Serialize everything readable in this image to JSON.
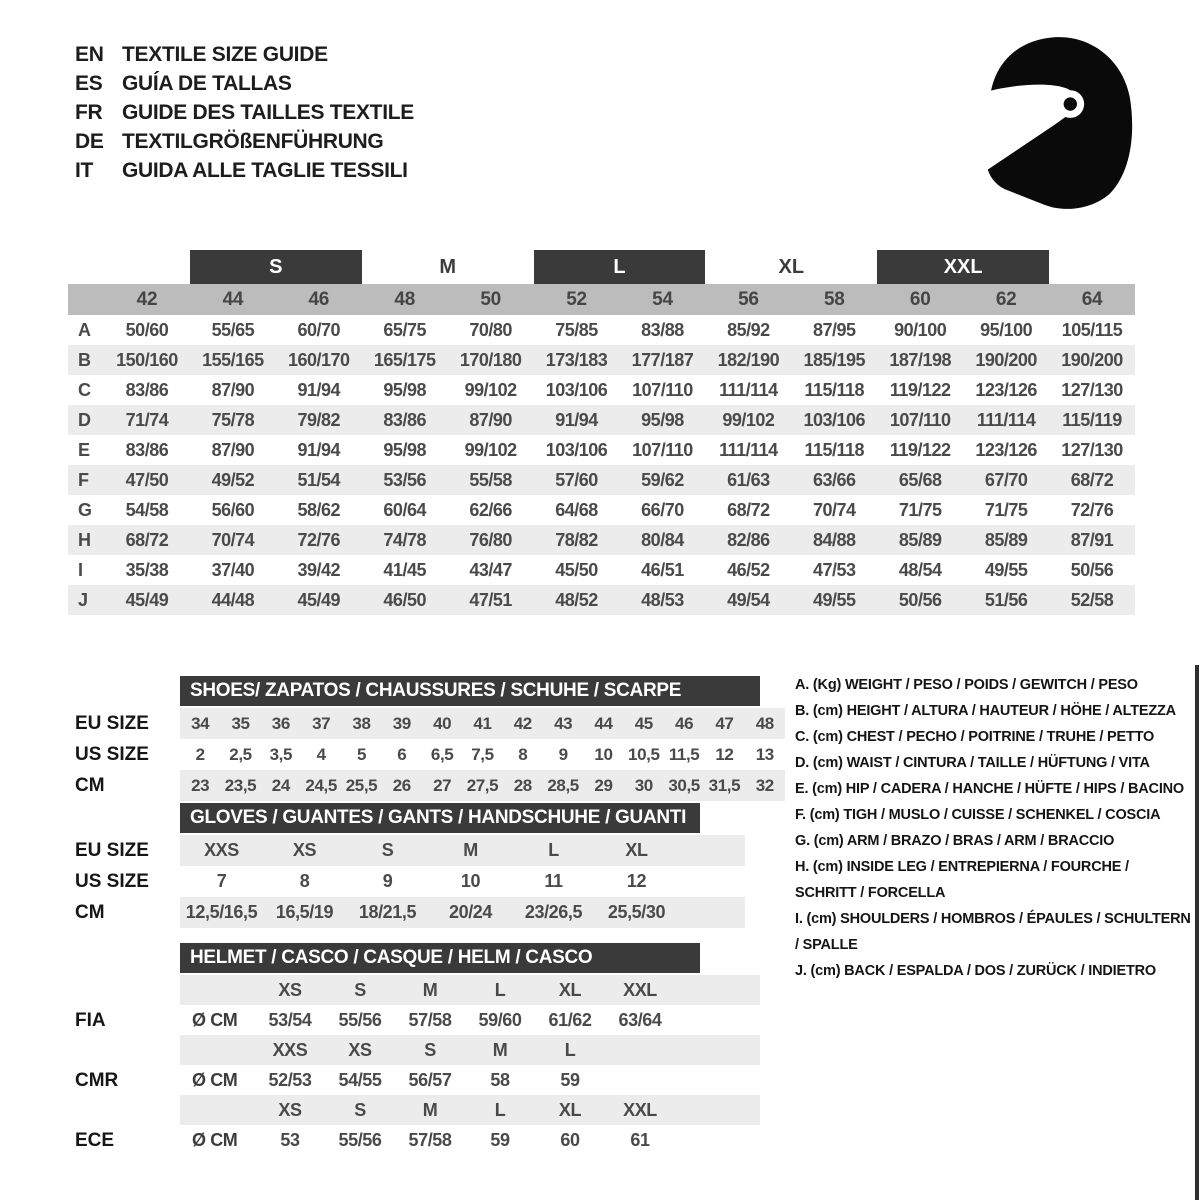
{
  "colors": {
    "header_bar": "#3a3a3a",
    "stripe": "#ececec",
    "band": "#bcbcbc",
    "table_text": "#4a4a4a",
    "helmet_icon": "#0a0a0a"
  },
  "header": {
    "languages": [
      {
        "code": "EN",
        "title": "TEXTILE SIZE GUIDE"
      },
      {
        "code": "ES",
        "title": "GUÍA DE TALLAS"
      },
      {
        "code": "FR",
        "title": "GUIDE DES TAILLES TEXTILE"
      },
      {
        "code": "DE",
        "title": "TEXTILGRÖßENFÜHRUNG"
      },
      {
        "code": "IT",
        "title": "GUIDA ALLE TAGLIE TESSILI"
      }
    ]
  },
  "icon": {
    "name": "racing-helmet"
  },
  "main_table": {
    "groups": [
      {
        "label": "S",
        "boxed": true
      },
      {
        "label": "M",
        "boxed": false
      },
      {
        "label": "L",
        "boxed": true
      },
      {
        "label": "XL",
        "boxed": false
      },
      {
        "label": "XXL",
        "boxed": true
      }
    ],
    "numeric_sizes": [
      "42",
      "44",
      "46",
      "48",
      "50",
      "52",
      "54",
      "56",
      "58",
      "60",
      "62",
      "64"
    ],
    "rows": [
      {
        "label": "A",
        "values": [
          "50/60",
          "55/65",
          "60/70",
          "65/75",
          "70/80",
          "75/85",
          "83/88",
          "85/92",
          "87/95",
          "90/100",
          "95/100",
          "105/115"
        ]
      },
      {
        "label": "B",
        "values": [
          "150/160",
          "155/165",
          "160/170",
          "165/175",
          "170/180",
          "173/183",
          "177/187",
          "182/190",
          "185/195",
          "187/198",
          "190/200",
          "190/200"
        ]
      },
      {
        "label": "C",
        "values": [
          "83/86",
          "87/90",
          "91/94",
          "95/98",
          "99/102",
          "103/106",
          "107/110",
          "111/114",
          "115/118",
          "119/122",
          "123/126",
          "127/130"
        ]
      },
      {
        "label": "D",
        "values": [
          "71/74",
          "75/78",
          "79/82",
          "83/86",
          "87/90",
          "91/94",
          "95/98",
          "99/102",
          "103/106",
          "107/110",
          "111/114",
          "115/119"
        ]
      },
      {
        "label": "E",
        "values": [
          "83/86",
          "87/90",
          "91/94",
          "95/98",
          "99/102",
          "103/106",
          "107/110",
          "111/114",
          "115/118",
          "119/122",
          "123/126",
          "127/130"
        ]
      },
      {
        "label": "F",
        "values": [
          "47/50",
          "49/52",
          "51/54",
          "53/56",
          "55/58",
          "57/60",
          "59/62",
          "61/63",
          "63/66",
          "65/68",
          "67/70",
          "68/72"
        ]
      },
      {
        "label": "G",
        "values": [
          "54/58",
          "56/60",
          "58/62",
          "60/64",
          "62/66",
          "64/68",
          "66/70",
          "68/72",
          "70/74",
          "71/75",
          "71/75",
          "72/76"
        ]
      },
      {
        "label": "H",
        "values": [
          "68/72",
          "70/74",
          "72/76",
          "74/78",
          "76/80",
          "78/82",
          "80/84",
          "82/86",
          "84/88",
          "85/89",
          "85/89",
          "87/91"
        ]
      },
      {
        "label": "I",
        "values": [
          "35/38",
          "37/40",
          "39/42",
          "41/45",
          "43/47",
          "45/50",
          "46/51",
          "46/52",
          "47/53",
          "48/54",
          "49/55",
          "50/56"
        ]
      },
      {
        "label": "J",
        "values": [
          "45/49",
          "44/48",
          "45/49",
          "46/50",
          "47/51",
          "48/52",
          "48/53",
          "49/54",
          "49/55",
          "50/56",
          "51/56",
          "52/58"
        ]
      }
    ]
  },
  "shoes_table": {
    "title": "SHOES/ ZAPATOS / CHAUSSURES / SCHUHE / SCARPE",
    "rows": [
      {
        "label": "EU SIZE",
        "striped": true,
        "values": [
          "34",
          "35",
          "36",
          "37",
          "38",
          "39",
          "40",
          "41",
          "42",
          "43",
          "44",
          "45",
          "46",
          "47",
          "48"
        ]
      },
      {
        "label": "US SIZE",
        "striped": false,
        "values": [
          "2",
          "2,5",
          "3,5",
          "4",
          "5",
          "6",
          "6,5",
          "7,5",
          "8",
          "9",
          "10",
          "10,5",
          "11,5",
          "12",
          "13"
        ]
      },
      {
        "label": "CM",
        "striped": true,
        "values": [
          "23",
          "23,5",
          "24",
          "24,5",
          "25,5",
          "26",
          "27",
          "27,5",
          "28",
          "28,5",
          "29",
          "30",
          "30,5",
          "31,5",
          "32"
        ]
      }
    ]
  },
  "gloves_table": {
    "title": "GLOVES / GUANTES / GANTS / HANDSCHUHE / GUANTI",
    "rows": [
      {
        "label": "EU SIZE",
        "striped": true,
        "values": [
          "XXS",
          "XS",
          "S",
          "M",
          "L",
          "XL"
        ]
      },
      {
        "label": "US SIZE",
        "striped": false,
        "values": [
          "7",
          "8",
          "9",
          "10",
          "11",
          "12"
        ]
      },
      {
        "label": "CM",
        "striped": true,
        "values": [
          "12,5/16,5",
          "16,5/19",
          "18/21,5",
          "20/24",
          "23/26,5",
          "25,5/30"
        ]
      }
    ]
  },
  "helmet_table": {
    "title": "HELMET / CASCO / CASQUE / HELM / CASCO",
    "sections": [
      {
        "label": "FIA",
        "unit": "Ø CM",
        "sizes": [
          "XS",
          "S",
          "M",
          "L",
          "XL",
          "XXL"
        ],
        "values": [
          "53/54",
          "55/56",
          "57/58",
          "59/60",
          "61/62",
          "63/64"
        ]
      },
      {
        "label": "CMR",
        "unit": "Ø CM",
        "sizes": [
          "XXS",
          "XS",
          "S",
          "M",
          "L"
        ],
        "values": [
          "52/53",
          "54/55",
          "56/57",
          "58",
          "59"
        ]
      },
      {
        "label": "ECE",
        "unit": "Ø CM",
        "sizes": [
          "XS",
          "S",
          "M",
          "L",
          "XL",
          "XXL"
        ],
        "values": [
          "53",
          "55/56",
          "57/58",
          "59",
          "60",
          "61"
        ]
      }
    ]
  },
  "legend": {
    "items": [
      "A. (Kg) WEIGHT / PESO / POIDS / GEWITCH / PESO",
      "B. (cm) HEIGHT / ALTURA / HAUTEUR / HÖHE / ALTEZZA",
      "C. (cm) CHEST / PECHO / POITRINE / TRUHE / PETTO",
      "D. (cm) WAIST / CINTURA / TAILLE / HÜFTUNG / VITA",
      "E. (cm) HIP / CADERA / HANCHE / HÜFTE / HIPS / BACINO",
      "F. (cm) TIGH / MUSLO / CUISSE / SCHENKEL / COSCIA",
      "G. (cm) ARM / BRAZO / BRAS / ARM / BRACCIO",
      "H. (cm) INSIDE LEG / ENTREPIERNA / FOURCHE / SCHRITT / FORCELLA",
      "I. (cm) SHOULDERS / HOMBROS / ÉPAULES / SCHULTERN / SPALLE",
      "J. (cm) BACK / ESPALDA / DOS / ZURÜCK / INDIETRO"
    ]
  }
}
